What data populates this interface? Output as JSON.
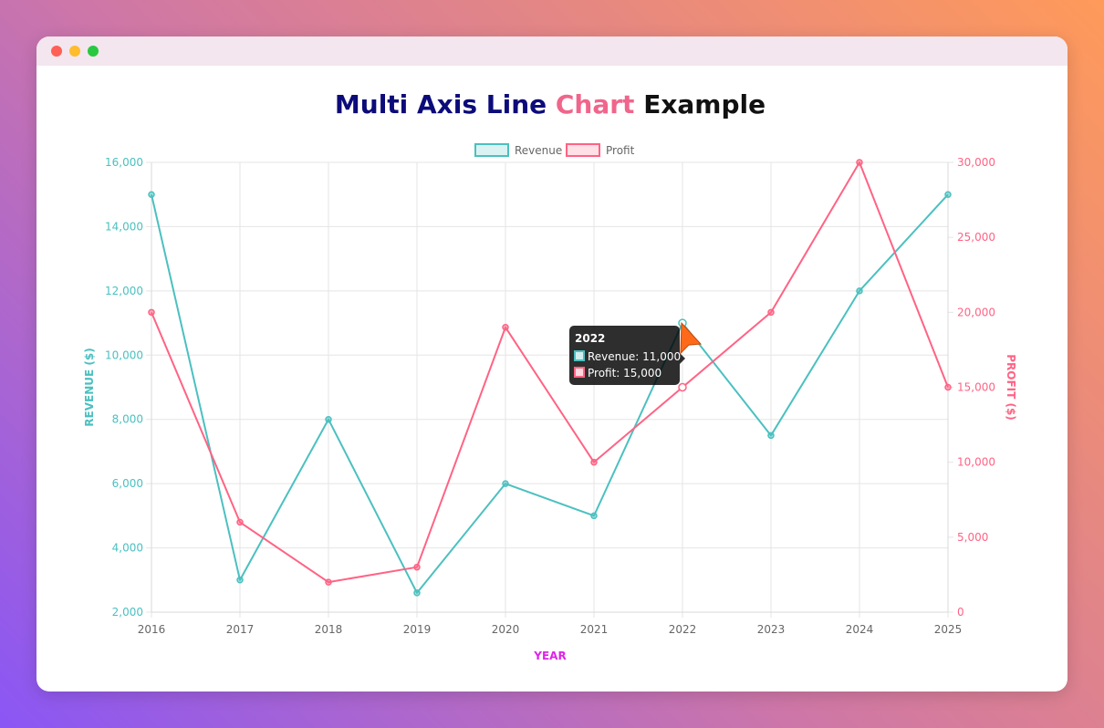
{
  "window": {
    "controls": [
      "close",
      "minimize",
      "maximize"
    ]
  },
  "title": {
    "part1": "Multi Axis Line",
    "part2": "Chart",
    "part3": "Example",
    "color1": "#0b0b7a",
    "color2": "#f0658b",
    "color3": "#111111"
  },
  "colors": {
    "revenue": "#4bc0c0",
    "profit": "#ff6384",
    "xlabel": "#e024e8",
    "grid": "#e5e5e5",
    "tick": "#666666"
  },
  "chart_data": {
    "type": "line",
    "title": "Multi Axis Line Chart Example",
    "categories": [
      "2016",
      "2017",
      "2018",
      "2019",
      "2020",
      "2021",
      "2022",
      "2023",
      "2024",
      "2025"
    ],
    "xlabel": "YEAR",
    "series": [
      {
        "name": "Revenue",
        "axis": "left",
        "values": [
          15000,
          3000,
          8000,
          2600,
          6000,
          5000,
          11000,
          7500,
          12000,
          15000
        ]
      },
      {
        "name": "Profit",
        "axis": "right",
        "values": [
          20000,
          6000,
          2000,
          3000,
          19000,
          10000,
          15000,
          20000,
          30000,
          15000
        ]
      }
    ],
    "y_left": {
      "label": "REVENUE ($)",
      "range": [
        2000,
        16000
      ],
      "ticks": [
        2000,
        4000,
        6000,
        8000,
        10000,
        12000,
        14000,
        16000
      ],
      "tick_labels": [
        "2,000",
        "4,000",
        "6,000",
        "8,000",
        "10,000",
        "12,000",
        "14,000",
        "16,000"
      ]
    },
    "y_right": {
      "label": "PROFIT ($)",
      "range": [
        0,
        30000
      ],
      "ticks": [
        0,
        5000,
        10000,
        15000,
        20000,
        25000,
        30000
      ],
      "tick_labels": [
        "0",
        "5,000",
        "10,000",
        "15,000",
        "20,000",
        "25,000",
        "30,000"
      ]
    },
    "legend": {
      "position": "top",
      "items": [
        "Revenue",
        "Profit"
      ]
    },
    "grid": true,
    "tooltip": {
      "title": "2022",
      "lines": [
        "Revenue: 11,000",
        "Profit: 15,000"
      ],
      "category_index": 6
    }
  }
}
